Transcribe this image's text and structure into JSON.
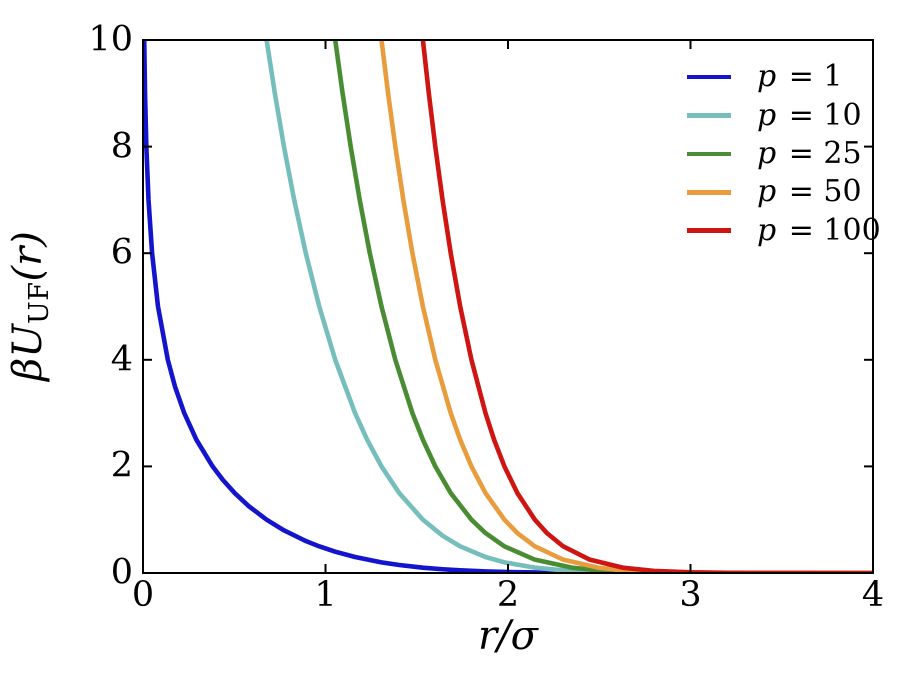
{
  "figure": {
    "background": "#ffffff",
    "frame_color": "#000000"
  },
  "labels": {
    "ylabel_prefix": "βU",
    "ylabel_sub": "UF",
    "ylabel_suffix": "(r)",
    "xlabel": "r/σ"
  },
  "chart_data": {
    "type": "line",
    "title": "",
    "xlabel": "r/σ",
    "ylabel": "βU_UF(r)",
    "xlim": [
      0,
      4
    ],
    "ylim": [
      0,
      10
    ],
    "xticks": [
      0,
      1,
      2,
      3,
      4
    ],
    "xtick_labels": [
      "0",
      "1",
      "2",
      "3",
      "4"
    ],
    "yticks": [
      0,
      2,
      4,
      6,
      8,
      10
    ],
    "ytick_labels": [
      "0",
      "2",
      "4",
      "6",
      "8",
      "10"
    ],
    "grid": false,
    "tick_direction": "in",
    "legend": {
      "position": "upper right",
      "frame": false
    },
    "series": [
      {
        "id": "p1",
        "label": "p = 1",
        "label_var": "p",
        "label_value": "= 1",
        "color": "#1414cd",
        "points": [
          [
            0.0067,
            10
          ],
          [
            0.0111,
            9
          ],
          [
            0.0183,
            8
          ],
          [
            0.0302,
            7
          ],
          [
            0.0498,
            6
          ],
          [
            0.0822,
            5
          ],
          [
            0.136,
            4
          ],
          [
            0.1751,
            3.5
          ],
          [
            0.226,
            3
          ],
          [
            0.2926,
            2.5
          ],
          [
            0.3813,
            2
          ],
          [
            0.4369,
            1.75
          ],
          [
            0.5025,
            1.5
          ],
          [
            0.581,
            1.25
          ],
          [
            0.6773,
            1
          ],
          [
            0.7724,
            0.8
          ],
          [
            0.8921,
            0.6
          ],
          [
            0.9658,
            0.5
          ],
          [
            1.0533,
            0.4
          ],
          [
            1.162,
            0.3
          ],
          [
            1.3068,
            0.2
          ],
          [
            1.404,
            0.15
          ],
          [
            1.5337,
            0.1
          ],
          [
            1.6414,
            0.07
          ],
          [
            1.738,
            0.05
          ],
          [
            1.8766,
            0.03
          ],
          [
            1.9804,
            0.02
          ],
          [
            2.1472,
            0.01
          ],
          [
            2.3023,
            0.005
          ],
          [
            2.4931,
            0.002
          ],
          [
            2.8,
            0.0005
          ],
          [
            3.2,
            0.0001
          ],
          [
            4,
            0
          ]
        ]
      },
      {
        "id": "p10",
        "label": "p = 10",
        "label_var": "p",
        "label_value": "= 10",
        "color": "#76bebb",
        "points": [
          [
            0.6773,
            10
          ],
          [
            0.7224,
            9
          ],
          [
            0.7724,
            8
          ],
          [
            0.8285,
            7
          ],
          [
            0.8921,
            6
          ],
          [
            0.9658,
            5
          ],
          [
            1.0533,
            4
          ],
          [
            1.162,
            3
          ],
          [
            1.2283,
            2.5
          ],
          [
            1.3068,
            2
          ],
          [
            1.404,
            1.5
          ],
          [
            1.5337,
            1
          ],
          [
            1.6414,
            0.7
          ],
          [
            1.738,
            0.5
          ],
          [
            1.8766,
            0.3
          ],
          [
            1.9804,
            0.2
          ],
          [
            2.1472,
            0.1
          ],
          [
            2.3023,
            0.05
          ],
          [
            2.4931,
            0.02
          ],
          [
            2.6284,
            0.01
          ],
          [
            3.0,
            0.0012
          ],
          [
            3.5,
            0.0001
          ],
          [
            4,
            0
          ]
        ]
      },
      {
        "id": "p25",
        "label": "p = 25",
        "label_var": "p",
        "label_value": "= 25",
        "color": "#4a8c33",
        "points": [
          [
            1.0533,
            10
          ],
          [
            1.0937,
            9
          ],
          [
            1.1381,
            8
          ],
          [
            1.1874,
            7
          ],
          [
            1.2428,
            6
          ],
          [
            1.3068,
            5
          ],
          [
            1.3826,
            4
          ],
          [
            1.4763,
            3
          ],
          [
            1.5337,
            2.5
          ],
          [
            1.6017,
            2
          ],
          [
            1.6862,
            1.5
          ],
          [
            1.7997,
            1
          ],
          [
            1.8766,
            0.75
          ],
          [
            1.9804,
            0.5
          ],
          [
            2.1472,
            0.25
          ],
          [
            2.3502,
            0.1
          ],
          [
            2.4931,
            0.05
          ],
          [
            2.6284,
            0.024
          ],
          [
            2.797,
            0.01
          ],
          [
            3.2,
            0.0009
          ],
          [
            4,
            0
          ]
        ]
      },
      {
        "id": "p50",
        "label": "p = 50",
        "label_var": "p",
        "label_value": "= 50",
        "color": "#e99c3d",
        "points": [
          [
            1.3068,
            10
          ],
          [
            1.3429,
            9
          ],
          [
            1.3826,
            8
          ],
          [
            1.4266,
            7
          ],
          [
            1.4763,
            6
          ],
          [
            1.5337,
            5
          ],
          [
            1.6017,
            4
          ],
          [
            1.6862,
            3
          ],
          [
            1.738,
            2.5
          ],
          [
            1.7997,
            2
          ],
          [
            1.8766,
            1.5
          ],
          [
            1.9804,
            1
          ],
          [
            2.0512,
            0.75
          ],
          [
            2.1472,
            0.5
          ],
          [
            2.3023,
            0.25
          ],
          [
            2.4931,
            0.1
          ],
          [
            2.6284,
            0.05
          ],
          [
            2.8,
            0.02
          ],
          [
            3.0,
            0.006
          ],
          [
            3.4,
            0.0006
          ],
          [
            4,
            0
          ]
        ]
      },
      {
        "id": "p100",
        "label": "p = 100",
        "label_var": "p",
        "label_value": "= 100",
        "color": "#cf1511",
        "points": [
          [
            1.5337,
            10
          ],
          [
            1.5661,
            9
          ],
          [
            1.6017,
            8
          ],
          [
            1.6414,
            7
          ],
          [
            1.6862,
            6
          ],
          [
            1.738,
            5
          ],
          [
            1.7997,
            4
          ],
          [
            1.8766,
            3
          ],
          [
            1.9239,
            2.5
          ],
          [
            1.9804,
            2
          ],
          [
            2.0512,
            1.5
          ],
          [
            2.1472,
            1
          ],
          [
            2.2128,
            0.75
          ],
          [
            2.3023,
            0.5
          ],
          [
            2.448,
            0.25
          ],
          [
            2.6284,
            0.1
          ],
          [
            2.8,
            0.04
          ],
          [
            3.0,
            0.012
          ],
          [
            3.2,
            0.0036
          ],
          [
            3.6,
            0.0003
          ],
          [
            4,
            0
          ]
        ]
      }
    ]
  }
}
